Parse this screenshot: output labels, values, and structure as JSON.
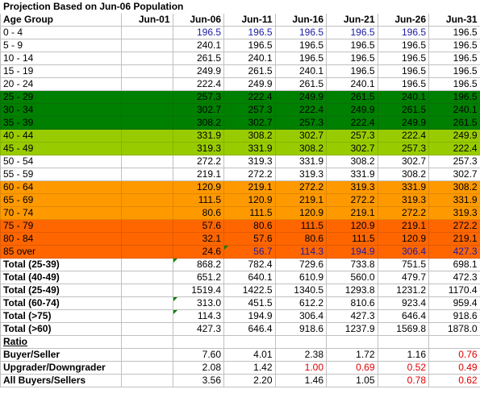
{
  "title": "Projection Based on Jun-06 Population",
  "columns": [
    "Age Group",
    "Jun-01",
    "Jun-06",
    "Jun-11",
    "Jun-16",
    "Jun-21",
    "Jun-26",
    "Jun-31"
  ],
  "age_rows": [
    {
      "label": "0 - 4",
      "cells": [
        "",
        "196.5",
        "196.5",
        "196.5",
        "196.5",
        "196.5",
        "196.5"
      ],
      "style": "",
      "blue": [
        1,
        2,
        3,
        4,
        5
      ]
    },
    {
      "label": "5 - 9",
      "cells": [
        "",
        "240.1",
        "196.5",
        "196.5",
        "196.5",
        "196.5",
        "196.5"
      ],
      "style": "",
      "blue": []
    },
    {
      "label": "10 - 14",
      "cells": [
        "",
        "261.5",
        "240.1",
        "196.5",
        "196.5",
        "196.5",
        "196.5"
      ],
      "style": "",
      "blue": []
    },
    {
      "label": "15 - 19",
      "cells": [
        "",
        "249.9",
        "261.5",
        "240.1",
        "196.5",
        "196.5",
        "196.5"
      ],
      "style": "",
      "blue": []
    },
    {
      "label": "20 - 24",
      "cells": [
        "",
        "222.4",
        "249.9",
        "261.5",
        "240.1",
        "196.5",
        "196.5"
      ],
      "style": "",
      "blue": []
    },
    {
      "label": "25 - 29",
      "cells": [
        "",
        "257.3",
        "222.4",
        "249.9",
        "261.5",
        "240.1",
        "196.5"
      ],
      "style": "g1",
      "blue": []
    },
    {
      "label": "30 - 34",
      "cells": [
        "",
        "302.7",
        "257.3",
        "222.4",
        "249.9",
        "261.5",
        "240.1"
      ],
      "style": "g1",
      "blue": []
    },
    {
      "label": "35 - 39",
      "cells": [
        "",
        "308.2",
        "302.7",
        "257.3",
        "222.4",
        "249.9",
        "261.5"
      ],
      "style": "g1",
      "blue": []
    },
    {
      "label": "40 - 44",
      "cells": [
        "",
        "331.9",
        "308.2",
        "302.7",
        "257.3",
        "222.4",
        "249.9"
      ],
      "style": "g2",
      "blue": []
    },
    {
      "label": "45 - 49",
      "cells": [
        "",
        "319.3",
        "331.9",
        "308.2",
        "302.7",
        "257.3",
        "222.4"
      ],
      "style": "g2",
      "blue": []
    },
    {
      "label": "50 - 54",
      "cells": [
        "",
        "272.2",
        "319.3",
        "331.9",
        "308.2",
        "302.7",
        "257.3"
      ],
      "style": "",
      "blue": []
    },
    {
      "label": "55 - 59",
      "cells": [
        "",
        "219.1",
        "272.2",
        "319.3",
        "331.9",
        "308.2",
        "302.7"
      ],
      "style": "",
      "blue": []
    },
    {
      "label": "60 - 64",
      "cells": [
        "",
        "120.9",
        "219.1",
        "272.2",
        "319.3",
        "331.9",
        "308.2"
      ],
      "style": "o1",
      "blue": []
    },
    {
      "label": "65 - 69",
      "cells": [
        "",
        "111.5",
        "120.9",
        "219.1",
        "272.2",
        "319.3",
        "331.9"
      ],
      "style": "o1",
      "blue": []
    },
    {
      "label": "70 - 74",
      "cells": [
        "",
        "80.6",
        "111.5",
        "120.9",
        "219.1",
        "272.2",
        "319.3"
      ],
      "style": "o1",
      "blue": []
    },
    {
      "label": "75 - 79",
      "cells": [
        "",
        "57.6",
        "80.6",
        "111.5",
        "120.9",
        "219.1",
        "272.2"
      ],
      "style": "o2",
      "blue": []
    },
    {
      "label": "80 - 84",
      "cells": [
        "",
        "32.1",
        "57.6",
        "80.6",
        "111.5",
        "120.9",
        "219.1"
      ],
      "style": "o2",
      "blue": []
    },
    {
      "label": "85 over",
      "cells": [
        "",
        "24.6",
        "56.7",
        "114.3",
        "194.9",
        "306.4",
        "427.3"
      ],
      "style": "o2",
      "blue": [
        2,
        3,
        4,
        5,
        6
      ]
    }
  ],
  "total_rows": [
    {
      "label": "Total (25-39)",
      "cells": [
        "",
        "868.2",
        "782.4",
        "729.6",
        "733.8",
        "751.5",
        "698.1"
      ]
    },
    {
      "label": "Total (40-49)",
      "cells": [
        "",
        "651.2",
        "640.1",
        "610.9",
        "560.0",
        "479.7",
        "472.3"
      ]
    },
    {
      "label": "Total (25-49)",
      "cells": [
        "",
        "1519.4",
        "1422.5",
        "1340.5",
        "1293.8",
        "1231.2",
        "1170.4"
      ]
    },
    {
      "label": "Total (60-74)",
      "cells": [
        "",
        "313.0",
        "451.5",
        "612.2",
        "810.6",
        "923.4",
        "959.4"
      ]
    },
    {
      "label": "Total (>75)",
      "cells": [
        "",
        "114.3",
        "194.9",
        "306.4",
        "427.3",
        "646.4",
        "918.6"
      ]
    },
    {
      "label": "Total (>60)",
      "cells": [
        "",
        "427.3",
        "646.4",
        "918.6",
        "1237.9",
        "1569.8",
        "1878.0"
      ]
    }
  ],
  "ratio_label": "Ratio",
  "ratio_rows": [
    {
      "label": "Buyer/Seller",
      "cells": [
        "",
        "7.60",
        "4.01",
        "2.38",
        "1.72",
        "1.16",
        "0.76"
      ],
      "red": [
        6
      ]
    },
    {
      "label": "Upgrader/Downgrader",
      "cells": [
        "",
        "2.08",
        "1.42",
        "1.00",
        "0.69",
        "0.52",
        "0.49"
      ],
      "red": [
        3,
        4,
        5,
        6
      ]
    },
    {
      "label": "All Buyers/Sellers",
      "cells": [
        "",
        "3.56",
        "2.20",
        "1.46",
        "1.05",
        "0.78",
        "0.62"
      ],
      "red": [
        5,
        6
      ]
    }
  ],
  "colors": {
    "dark_green": "#008000",
    "light_green": "#99cc00",
    "orange": "#ff9900",
    "dark_orange": "#ff6600",
    "blue_text": "#1a1aa6",
    "red_text": "#e00000"
  }
}
